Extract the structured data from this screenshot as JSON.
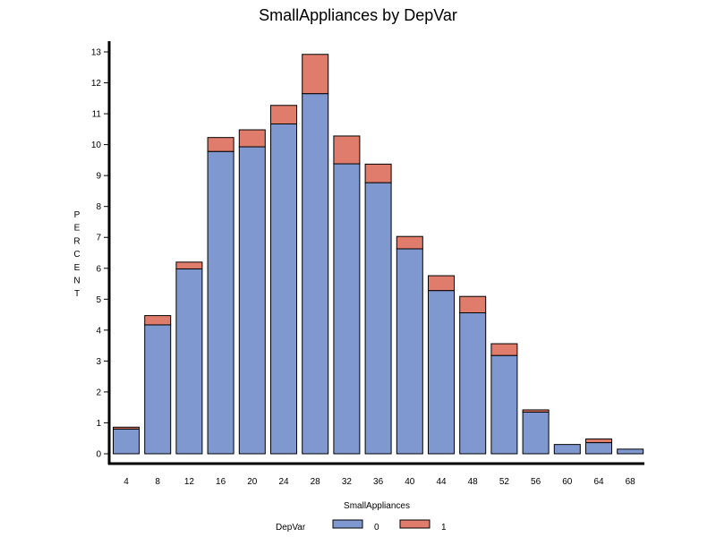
{
  "chart_data": {
    "type": "bar",
    "stacked": true,
    "title": "SmallAppliances by DepVar",
    "xlabel": "SmallAppliances",
    "ylabel": "PERCENT",
    "categories": [
      "4",
      "8",
      "12",
      "16",
      "20",
      "24",
      "28",
      "32",
      "36",
      "40",
      "44",
      "48",
      "52",
      "56",
      "60",
      "64",
      "68"
    ],
    "series": [
      {
        "name": "0",
        "color": "#7f98cf",
        "values": [
          0.8,
          4.17,
          5.98,
          9.78,
          9.93,
          10.67,
          11.65,
          9.38,
          8.77,
          6.63,
          5.28,
          4.56,
          3.18,
          1.35,
          0.3,
          0.36,
          0.15
        ]
      },
      {
        "name": "1",
        "color": "#e07c6c",
        "values": [
          0.06,
          0.3,
          0.22,
          0.45,
          0.55,
          0.6,
          1.27,
          0.9,
          0.6,
          0.4,
          0.48,
          0.53,
          0.38,
          0.07,
          0.0,
          0.12,
          0.0
        ]
      }
    ],
    "ylim": [
      0,
      13
    ],
    "yticks": [
      "0",
      "1",
      "2",
      "3",
      "4",
      "5",
      "6",
      "7",
      "8",
      "9",
      "10",
      "11",
      "12",
      "13"
    ],
    "grid": false,
    "legend": {
      "title": "DepVar",
      "placement": "bottom"
    }
  }
}
